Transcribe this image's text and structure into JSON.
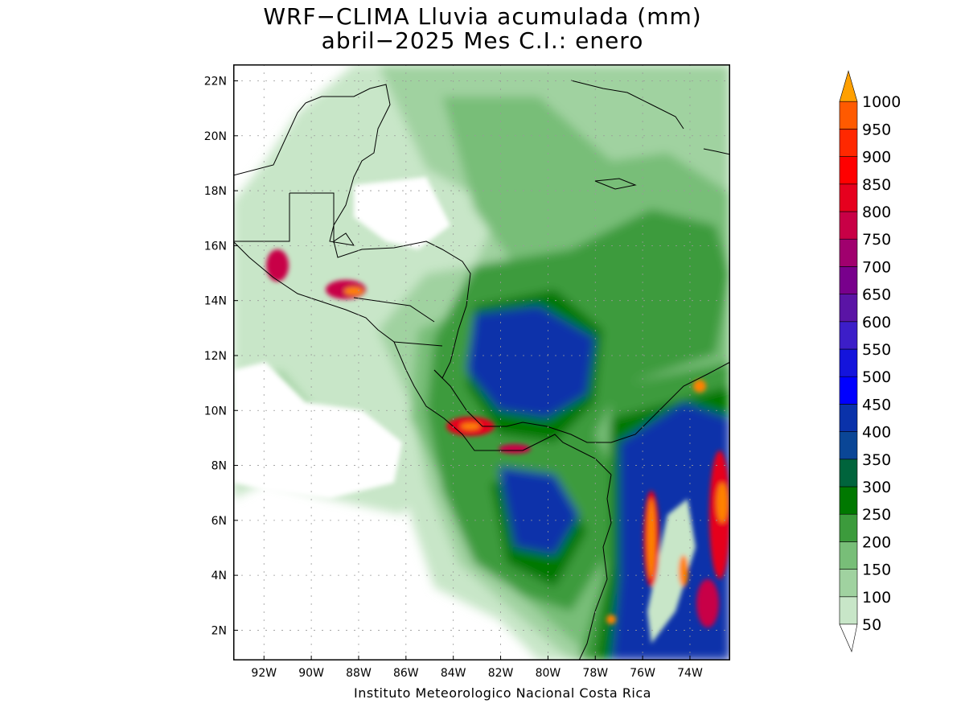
{
  "header": {
    "title_line1": "WRF−CLIMA Lluvia acumulada (mm)",
    "title_line2": "abril−2025 Mes C.I.: enero"
  },
  "credit": "Instituto Meteorologico Nacional Costa Rica",
  "map": {
    "lon_range": [
      -93.3,
      -72.3
    ],
    "lat_range": [
      0.9,
      22.6
    ],
    "lon_ticks": [
      {
        "value": -92,
        "label": "92W"
      },
      {
        "value": -90,
        "label": "90W"
      },
      {
        "value": -88,
        "label": "88W"
      },
      {
        "value": -86,
        "label": "86W"
      },
      {
        "value": -84,
        "label": "84W"
      },
      {
        "value": -82,
        "label": "82W"
      },
      {
        "value": -80,
        "label": "80W"
      },
      {
        "value": -78,
        "label": "78W"
      },
      {
        "value": -76,
        "label": "76W"
      },
      {
        "value": -74,
        "label": "74W"
      }
    ],
    "lat_ticks": [
      {
        "value": 2,
        "label": "2N"
      },
      {
        "value": 4,
        "label": "4N"
      },
      {
        "value": 6,
        "label": "6N"
      },
      {
        "value": 8,
        "label": "8N"
      },
      {
        "value": 10,
        "label": "10N"
      },
      {
        "value": 12,
        "label": "12N"
      },
      {
        "value": 14,
        "label": "14N"
      },
      {
        "value": 16,
        "label": "16N"
      },
      {
        "value": 18,
        "label": "18N"
      },
      {
        "value": 20,
        "label": "20N"
      },
      {
        "value": 22,
        "label": "22N"
      }
    ],
    "grid": true,
    "variable": "accumulated rainfall",
    "units": "mm"
  },
  "colorbar": {
    "levels": [
      {
        "value": 50,
        "label": "50",
        "color": "#c8e6c8"
      },
      {
        "value": 100,
        "label": "100",
        "color": "#a0d2a0"
      },
      {
        "value": 150,
        "label": "150",
        "color": "#78be78"
      },
      {
        "value": 200,
        "label": "200",
        "color": "#3c9b3c"
      },
      {
        "value": 250,
        "label": "250",
        "color": "#007800"
      },
      {
        "value": 300,
        "label": "300",
        "color": "#00643c"
      },
      {
        "value": 350,
        "label": "350",
        "color": "#0a4696"
      },
      {
        "value": 400,
        "label": "400",
        "color": "#0a32aa"
      },
      {
        "value": 450,
        "label": "450",
        "color": "#0000ff"
      },
      {
        "value": 500,
        "label": "500",
        "color": "#1414dc"
      },
      {
        "value": 550,
        "label": "550",
        "color": "#3c1ec8"
      },
      {
        "value": 600,
        "label": "600",
        "color": "#5a14a5"
      },
      {
        "value": 650,
        "label": "650",
        "color": "#78008c"
      },
      {
        "value": 700,
        "label": "700",
        "color": "#a0006e"
      },
      {
        "value": 750,
        "label": "750",
        "color": "#c80046"
      },
      {
        "value": 800,
        "label": "800",
        "color": "#e6001e"
      },
      {
        "value": 850,
        "label": "850",
        "color": "#ff0000"
      },
      {
        "value": 900,
        "label": "900",
        "color": "#ff2800"
      },
      {
        "value": 950,
        "label": "950",
        "color": "#ff5a00"
      },
      {
        "value": 1000,
        "label": "1000",
        "color": "#ff8200"
      }
    ],
    "overflow_color": "#ffa000"
  }
}
